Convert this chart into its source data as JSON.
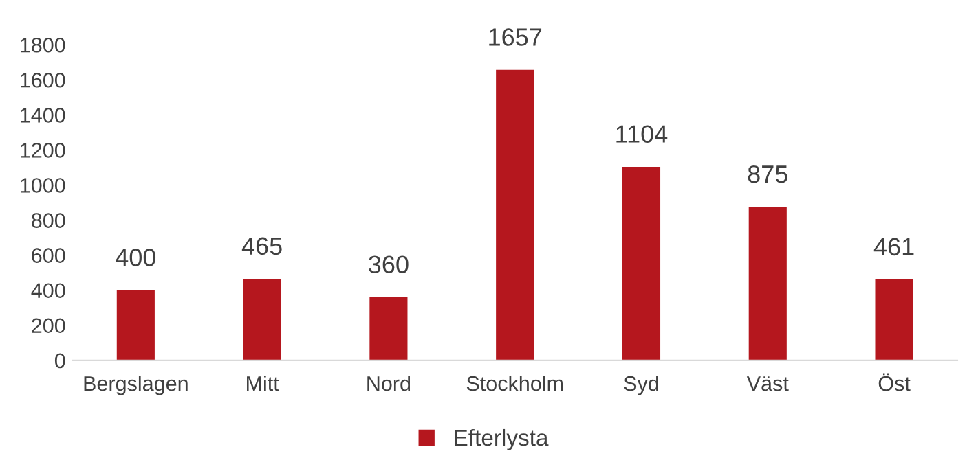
{
  "chart_data": {
    "type": "bar",
    "categories": [
      "Bergslagen",
      "Mitt",
      "Nord",
      "Stockholm",
      "Syd",
      "Väst",
      "Öst"
    ],
    "series": [
      {
        "name": "Efterlysta",
        "color": "#b5171e",
        "values": [
          400,
          465,
          360,
          1657,
          1104,
          875,
          461
        ]
      }
    ],
    "ylim": [
      0,
      1800
    ],
    "yticks": [
      0,
      200,
      400,
      600,
      800,
      1000,
      1200,
      1400,
      1600,
      1800
    ],
    "data_labels": true,
    "grid": false,
    "legend": "bottom"
  }
}
